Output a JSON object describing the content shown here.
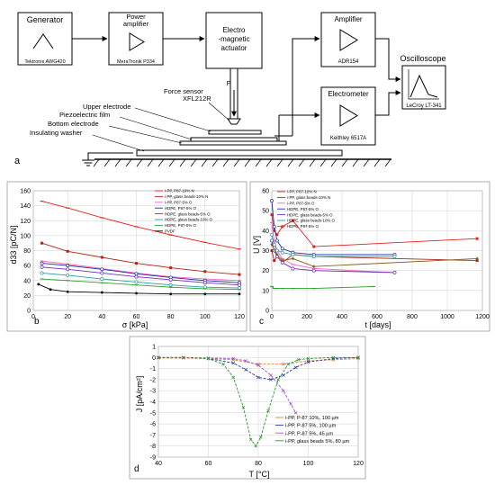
{
  "diagram": {
    "generator": {
      "title": "Generator",
      "model": "Tektronix AWG420"
    },
    "power_amp": {
      "title_1": "Power",
      "title_2": "amplifier",
      "model": "MeraTronik P334"
    },
    "actuator": {
      "line1": "Electro",
      "line2": "-magnetic",
      "line3": "actuator"
    },
    "amplifier": {
      "title": "Amplifier",
      "model": "ADR154"
    },
    "electrometer": {
      "title": "Electrometer",
      "model": "Keithley 6517A"
    },
    "oscilloscope": {
      "title": "Oscilloscope",
      "model": "LeCroy LT-341"
    },
    "force_sensor_1": "Force sensor",
    "force_sensor_2": "XFL212R",
    "force_label": "F",
    "upper_electrode": "Upper electrode",
    "piezo_film": "Piezoelectric film",
    "bottom_electrode": "Bottom electrode",
    "washer": "Insulating washer",
    "panel_label": "a"
  },
  "panels": {
    "b": "b",
    "c": "c",
    "d": "d"
  },
  "chart_data": [
    {
      "type": "line",
      "panel": "b",
      "xlabel": "σ [kPa]",
      "ylabel": "d33 [pC/N]",
      "xlim": [
        0,
        120
      ],
      "ylim": [
        0,
        160
      ],
      "xticks": [
        0,
        20,
        40,
        60,
        80,
        100,
        120
      ],
      "yticks": [
        0,
        20,
        40,
        60,
        80,
        100,
        120,
        140,
        160
      ],
      "grid": true,
      "legend": "top-right",
      "series": [
        {
          "name": "i-PP, P87-10% N",
          "color": "#e8201c",
          "marker": "dash",
          "x": [
            5,
            20,
            40,
            60,
            80,
            100,
            120
          ],
          "y": [
            146,
            137,
            124,
            112,
            101,
            91,
            82
          ]
        },
        {
          "name": "i-PP, glass beads-10% N",
          "color": "#b02418",
          "marker": "square",
          "x": [
            5,
            20,
            40,
            60,
            80,
            100,
            120
          ],
          "y": [
            90,
            79,
            71,
            63,
            57,
            52,
            48
          ]
        },
        {
          "name": "i-PP, P87-5% O",
          "color": "#ff60c0",
          "marker": "dash",
          "x": [
            5,
            20,
            40,
            60,
            80,
            100,
            120
          ],
          "y": [
            66,
            62,
            56,
            50,
            45,
            42,
            40
          ]
        },
        {
          "name": "HDPE, P87-5% O",
          "color": "#1a2ea0",
          "marker": "circle",
          "x": [
            5,
            20,
            40,
            60,
            80,
            100,
            120
          ],
          "y": [
            63,
            60,
            55,
            49,
            44,
            40,
            37
          ]
        },
        {
          "name": "HDPE, glass beads-5% O",
          "color": "#6a2cc0",
          "marker": "circle",
          "x": [
            5,
            20,
            40,
            60,
            80,
            100,
            120
          ],
          "y": [
            58,
            55,
            50,
            45,
            41,
            37,
            34
          ]
        },
        {
          "name": "HDPE, glass beads-10% O",
          "color": "#2a9c9c",
          "marker": "circle",
          "x": [
            5,
            20,
            40,
            60,
            80,
            100,
            120
          ],
          "y": [
            50,
            47,
            42,
            38,
            34,
            31,
            30
          ]
        },
        {
          "name": "HDPE, P87-5% O",
          "color": "#2aa02a",
          "marker": "dash",
          "x": [
            5,
            20,
            40,
            60,
            80,
            100,
            120
          ],
          "y": [
            42,
            40,
            37,
            34,
            31,
            29,
            28
          ]
        },
        {
          "name": "PVDF",
          "color": "#000000",
          "marker": "dot",
          "x": [
            3,
            10,
            20,
            40,
            60,
            80,
            100,
            120
          ],
          "y": [
            35,
            28,
            25,
            24,
            23,
            22,
            22,
            22
          ]
        }
      ]
    },
    {
      "type": "line",
      "panel": "c",
      "xlabel": "t [days]",
      "ylabel": "U [V]",
      "xlim": [
        0,
        1200
      ],
      "ylim": [
        0,
        60
      ],
      "xticks": [
        0,
        200,
        400,
        600,
        800,
        1000,
        1200
      ],
      "yticks": [
        0,
        10,
        20,
        30,
        40,
        50,
        60
      ],
      "grid": true,
      "legend": "top-left",
      "series": [
        {
          "name": "i-PP, P87-10% N",
          "color": "#e8201c",
          "marker": "square",
          "x": [
            0,
            14,
            30,
            60,
            120,
            240,
            1170
          ],
          "y": [
            48,
            40,
            38,
            42,
            45,
            32,
            36
          ]
        },
        {
          "name": "i-PP, glass beads-10% N",
          "color": "#b02418",
          "marker": "square",
          "x": [
            0,
            14,
            30,
            60,
            120,
            240,
            1170
          ],
          "y": [
            30,
            25,
            27,
            24,
            28,
            27,
            25
          ]
        },
        {
          "name": "i-PP, P87-5% O",
          "color": "#ff60c0",
          "marker": "dash",
          "x": [
            0,
            14,
            30,
            60,
            120,
            240,
            700
          ],
          "y": [
            44,
            35,
            30,
            26,
            23,
            21,
            19
          ]
        },
        {
          "name": "HDPE, P87-5% O",
          "color": "#1a2ea0",
          "marker": "circle",
          "x": [
            0,
            14,
            30,
            60,
            120,
            240,
            700
          ],
          "y": [
            55,
            42,
            35,
            31,
            29,
            28,
            28
          ]
        },
        {
          "name": "HDPE, glass beads-5% O",
          "color": "#6a2cc0",
          "marker": "circle",
          "x": [
            0,
            14,
            30,
            60,
            120,
            240,
            700
          ],
          "y": [
            35,
            30,
            27,
            24,
            21,
            20,
            19
          ]
        },
        {
          "name": "HDPE, glass beads-10% O",
          "color": "#2a9c9c",
          "marker": "circle",
          "x": [
            0,
            14,
            30,
            60,
            120,
            240,
            700
          ],
          "y": [
            38,
            33,
            30,
            29,
            28,
            27,
            27
          ]
        },
        {
          "name": "HDPE, P87-5% O",
          "color": "#2aa02a",
          "marker": "dash",
          "x": [
            0,
            14,
            30,
            60,
            120,
            240,
            580
          ],
          "y": [
            12,
            11,
            11,
            11,
            11,
            11,
            12
          ]
        },
        {
          "name": "",
          "color": "#806020",
          "marker": "diamond",
          "x": [
            0,
            30,
            60,
            120,
            240,
            1170
          ],
          "y": [
            33,
            28,
            25,
            26,
            22,
            26
          ]
        }
      ]
    },
    {
      "type": "line",
      "panel": "d",
      "xlabel": "T [°C]",
      "ylabel": "J [pA/cm²]",
      "xlim": [
        40,
        120
      ],
      "ylim": [
        -9,
        1
      ],
      "xticks": [
        40,
        60,
        80,
        100,
        120
      ],
      "yticks": [
        1,
        0,
        -1,
        -2,
        -3,
        -4,
        -5,
        -6,
        -7,
        -8,
        -9
      ],
      "grid": true,
      "legend": "bottom-right",
      "series": [
        {
          "name": "i-PP, P-87 10%, 100 µm",
          "color": "#d08040",
          "marker": "x",
          "x": [
            40,
            50,
            60,
            70,
            80,
            90,
            100,
            110,
            120
          ],
          "y": [
            -0.05,
            -0.05,
            -0.1,
            -0.2,
            -0.6,
            -0.6,
            -0.3,
            -0.2,
            -0.1
          ]
        },
        {
          "name": "i-PP, P-87 5%, 100 µm",
          "color": "#2a3aa0",
          "marker": "x",
          "x": [
            40,
            50,
            60,
            70,
            75,
            80,
            85,
            90,
            95,
            100,
            110,
            120
          ],
          "y": [
            0,
            0,
            -0.1,
            -0.5,
            -1.1,
            -1.8,
            -2.0,
            -1.6,
            -0.9,
            -0.4,
            -0.1,
            0
          ]
        },
        {
          "name": "i-PP, P-87 5%, 45 µm",
          "color": "#a050d0",
          "marker": "x",
          "x": [
            40,
            50,
            60,
            70,
            75,
            80,
            85,
            90,
            93,
            95
          ],
          "y": [
            0,
            0,
            -0.05,
            -0.1,
            -0.3,
            -0.7,
            -1.6,
            -3.0,
            -4.2,
            -5.0
          ]
        },
        {
          "name": "i-PP, glass beads 5%, 80 µm",
          "color": "#2a9a2a",
          "marker": "x",
          "x": [
            40,
            50,
            60,
            66,
            70,
            74,
            77,
            79,
            81,
            84,
            88,
            92,
            96,
            100,
            110,
            120
          ],
          "y": [
            0,
            0,
            -0.1,
            -0.6,
            -1.8,
            -4.5,
            -7.4,
            -8.0,
            -7.2,
            -4.8,
            -2.0,
            -0.6,
            -0.2,
            -0.1,
            0,
            0
          ]
        }
      ]
    }
  ]
}
